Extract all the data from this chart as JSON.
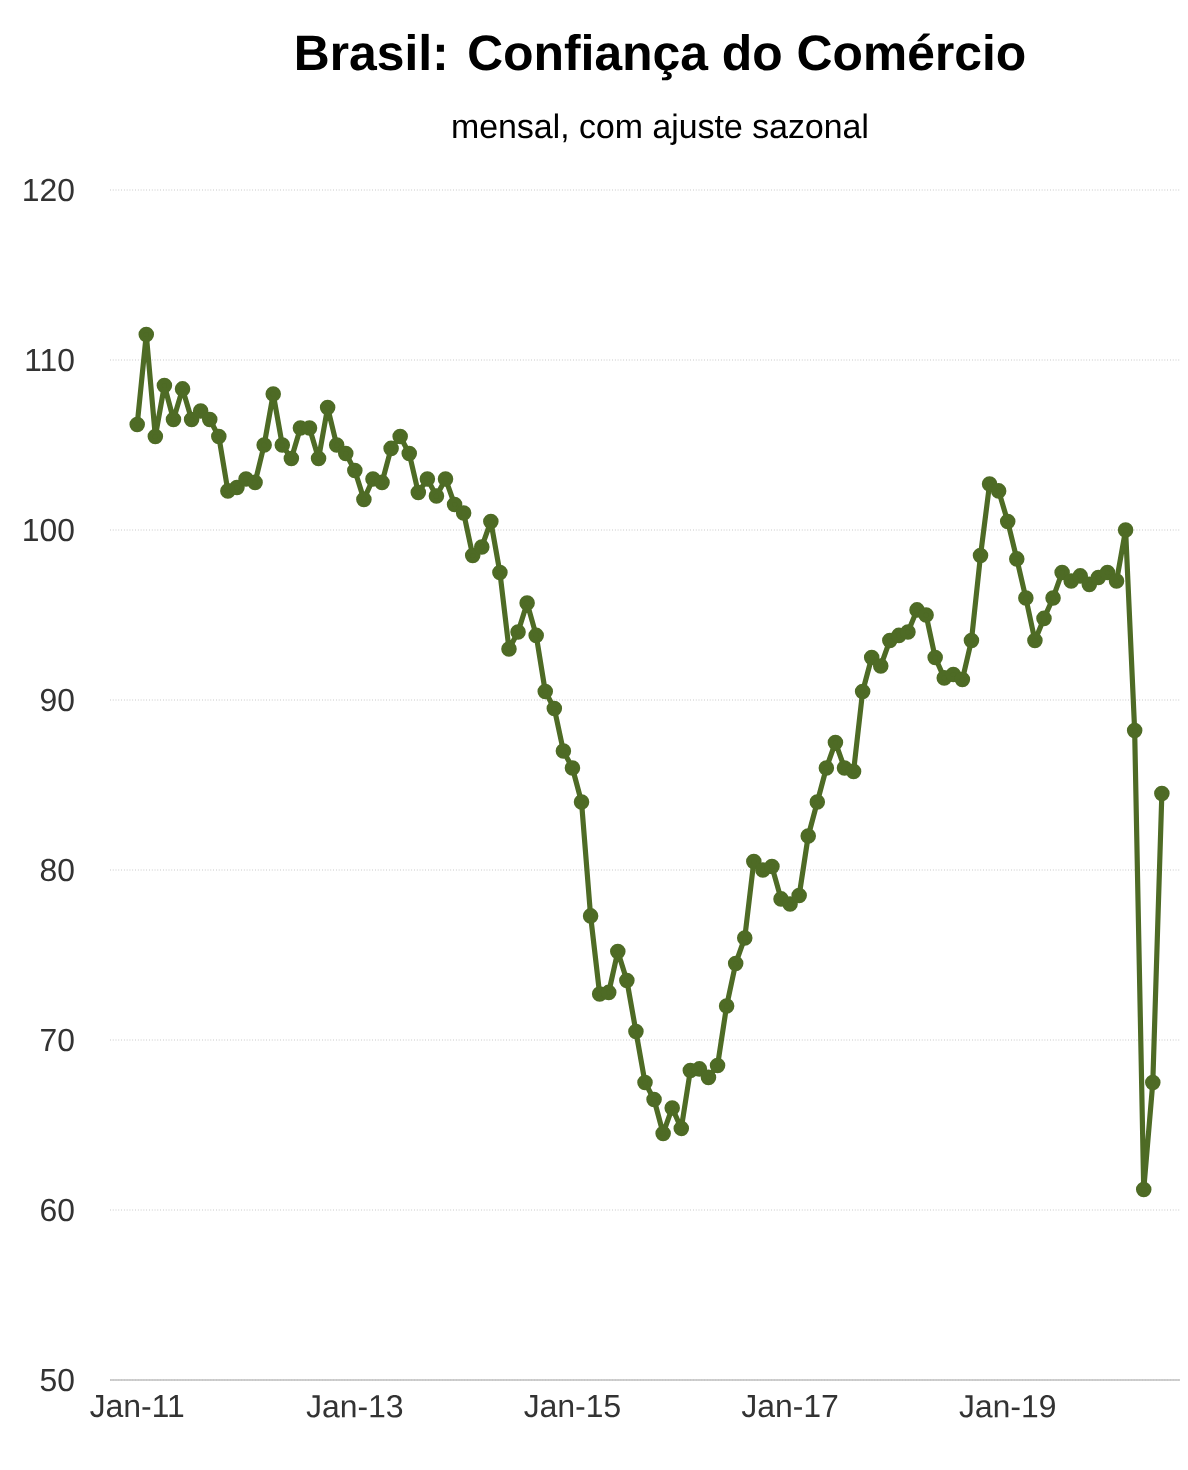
{
  "chart_data": {
    "type": "line",
    "title": "Brasil: Confiança do Comércio",
    "subtitle": "mensal, com ajuste sazonal",
    "x": [
      "2011-01",
      "2011-02",
      "2011-03",
      "2011-04",
      "2011-05",
      "2011-06",
      "2011-07",
      "2011-08",
      "2011-09",
      "2011-10",
      "2011-11",
      "2011-12",
      "2012-01",
      "2012-02",
      "2012-03",
      "2012-04",
      "2012-05",
      "2012-06",
      "2012-07",
      "2012-08",
      "2012-09",
      "2012-10",
      "2012-11",
      "2012-12",
      "2013-01",
      "2013-02",
      "2013-03",
      "2013-04",
      "2013-05",
      "2013-06",
      "2013-07",
      "2013-08",
      "2013-09",
      "2013-10",
      "2013-11",
      "2013-12",
      "2014-01",
      "2014-02",
      "2014-03",
      "2014-04",
      "2014-05",
      "2014-06",
      "2014-07",
      "2014-08",
      "2014-09",
      "2014-10",
      "2014-11",
      "2014-12",
      "2015-01",
      "2015-02",
      "2015-03",
      "2015-04",
      "2015-05",
      "2015-06",
      "2015-07",
      "2015-08",
      "2015-09",
      "2015-10",
      "2015-11",
      "2015-12",
      "2016-01",
      "2016-02",
      "2016-03",
      "2016-04",
      "2016-05",
      "2016-06",
      "2016-07",
      "2016-08",
      "2016-09",
      "2016-10",
      "2016-11",
      "2016-12",
      "2017-01",
      "2017-02",
      "2017-03",
      "2017-04",
      "2017-05",
      "2017-06",
      "2017-07",
      "2017-08",
      "2017-09",
      "2017-10",
      "2017-11",
      "2017-12",
      "2018-01",
      "2018-02",
      "2018-03",
      "2018-04",
      "2018-05",
      "2018-06",
      "2018-07",
      "2018-08",
      "2018-09",
      "2018-10",
      "2018-11",
      "2018-12",
      "2019-01",
      "2019-02",
      "2019-03",
      "2019-04",
      "2019-05",
      "2019-06",
      "2019-07",
      "2019-08",
      "2019-09",
      "2019-10",
      "2019-11",
      "2019-12",
      "2020-01",
      "2020-02",
      "2020-03",
      "2020-04",
      "2020-05",
      "2020-06"
    ],
    "series": [
      {
        "color": "#4e6b25",
        "values": [
          106.2,
          111.5,
          105.5,
          108.5,
          106.5,
          108.3,
          106.5,
          107,
          106.5,
          105.5,
          102.3,
          102.5,
          103,
          102.8,
          105,
          108,
          105,
          104.2,
          106,
          106,
          104.2,
          107.2,
          105,
          104.5,
          103.5,
          101.8,
          103,
          102.8,
          104.8,
          105.5,
          104.5,
          102.2,
          103,
          102,
          103,
          101.5,
          101,
          98.5,
          99,
          100.5,
          97.5,
          93,
          94,
          95.7,
          93.8,
          90.5,
          89.5,
          87,
          86,
          84,
          77.3,
          72.7,
          72.8,
          75.2,
          73.5,
          70.5,
          67.5,
          66.5,
          64.5,
          66,
          64.8,
          68.2,
          68.3,
          67.8,
          68.5,
          72,
          74.5,
          76,
          80.5,
          80,
          80.2,
          78.3,
          78,
          78.5,
          82,
          84,
          86,
          87.5,
          86,
          85.8,
          90.5,
          92.5,
          92,
          93.5,
          93.8,
          94,
          95.3,
          95,
          92.5,
          91.3,
          91.5,
          91.2,
          93.5,
          98.5,
          102.7,
          102.3,
          100.5,
          98.3,
          96,
          93.5,
          94.8,
          96,
          97.5,
          97,
          97.3,
          96.8,
          97.2,
          97.5,
          97,
          100,
          88.2,
          61.2,
          67.5,
          84.5
        ]
      }
    ],
    "xlim": [
      "2010-10",
      "2020-08"
    ],
    "xticks": [
      {
        "value": "2011-01",
        "label": "Jan-11"
      },
      {
        "value": "2013-01",
        "label": "Jan-13"
      },
      {
        "value": "2015-01",
        "label": "Jan-15"
      },
      {
        "value": "2017-01",
        "label": "Jan-17"
      },
      {
        "value": "2019-01",
        "label": "Jan-19"
      }
    ],
    "ylim": [
      50,
      120
    ],
    "yticks": [
      50,
      60,
      70,
      80,
      90,
      100,
      110,
      120
    ],
    "grid": "y",
    "marker": "circle",
    "line_style": "solid"
  }
}
